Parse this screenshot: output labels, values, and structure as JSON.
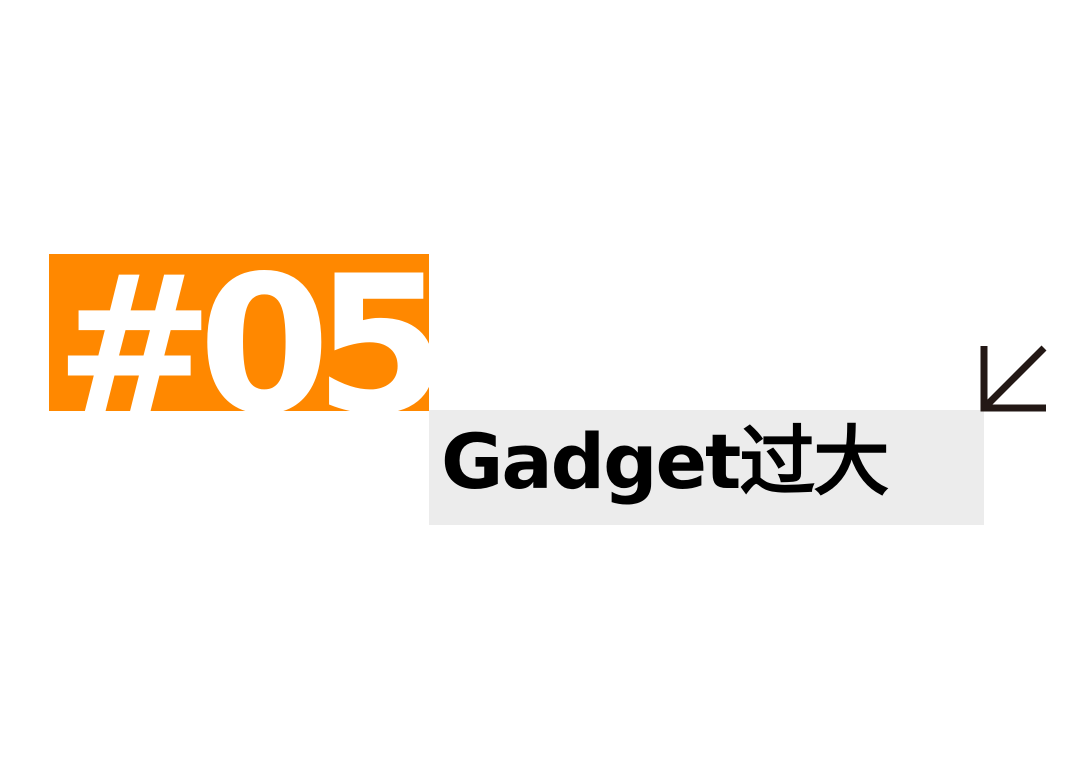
{
  "section": {
    "number": "#05",
    "title": "Gadget过大"
  },
  "colors": {
    "accent": "#ff8800",
    "title_background": "#ececec",
    "text_dark": "#000000",
    "number_text": "#ffffff"
  },
  "icons": {
    "arrow": "arrow-down-left-icon"
  }
}
